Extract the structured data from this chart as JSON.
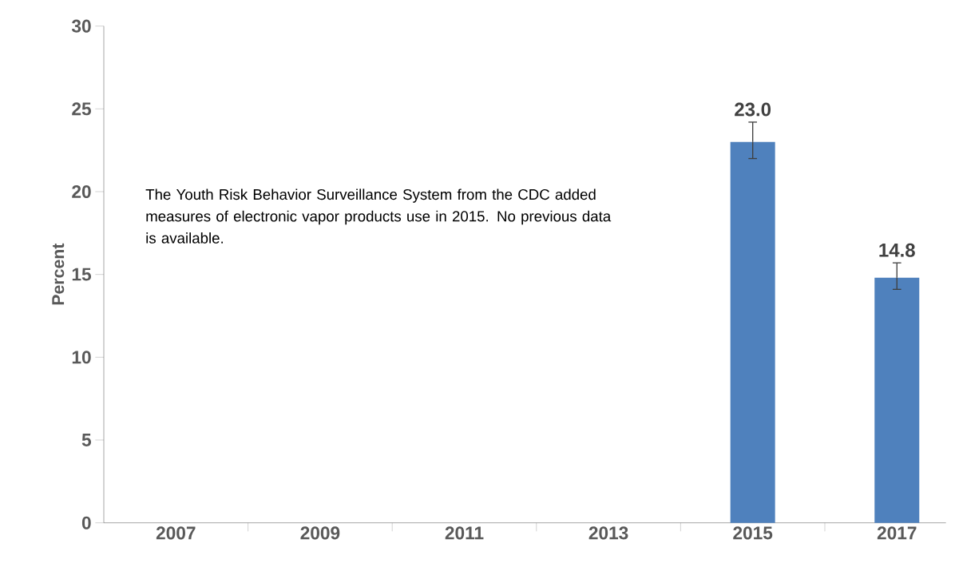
{
  "chart_data": {
    "type": "bar",
    "ylabel": "Percent",
    "categories": [
      "2007",
      "2009",
      "2011",
      "2013",
      "2015",
      "2017"
    ],
    "values": [
      null,
      null,
      null,
      null,
      23.0,
      14.8
    ],
    "errors": [
      null,
      null,
      null,
      null,
      [
        22.0,
        24.2
      ],
      [
        14.1,
        15.7
      ]
    ],
    "value_labels": [
      null,
      null,
      null,
      null,
      "23.0",
      "14.8"
    ],
    "color": "#4f81bd",
    "ylim": [
      0,
      30
    ],
    "yticks": [
      0,
      5,
      10,
      15,
      20,
      25,
      30
    ],
    "grid": false,
    "annotations": [
      "The Youth Risk Behavior Surveillance System from the CDC added measures of electronic vapor products use in 2015. No previous data is available."
    ]
  }
}
